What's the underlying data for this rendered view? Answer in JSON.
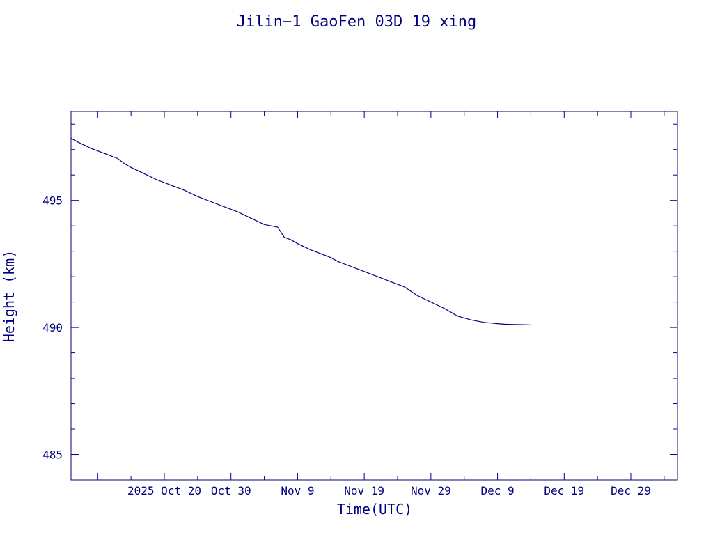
{
  "chart_data": {
    "type": "line",
    "title": "Jilin−1 GaoFen 03D 19 xing",
    "xlabel": "Time(UTC)",
    "ylabel": "Height (km)",
    "color": "#00007f",
    "grid": false,
    "xlim": [
      "2025-10-06",
      "2026-01-05"
    ],
    "ylim": [
      484,
      498.5
    ],
    "x_ticks": [
      {
        "date": "2025-10-20",
        "label": "2025 Oct 20"
      },
      {
        "date": "2025-10-30",
        "label": "Oct 30"
      },
      {
        "date": "2025-11-09",
        "label": "Nov  9"
      },
      {
        "date": "2025-11-19",
        "label": "Nov 19"
      },
      {
        "date": "2025-11-29",
        "label": "Nov 29"
      },
      {
        "date": "2025-12-09",
        "label": "Dec  9"
      },
      {
        "date": "2025-12-19",
        "label": "Dec 19"
      },
      {
        "date": "2025-12-29",
        "label": "Dec 29"
      }
    ],
    "y_ticks": [
      {
        "value": 485,
        "label": "485"
      },
      {
        "value": 490,
        "label": "490"
      },
      {
        "value": 495,
        "label": "495"
      }
    ],
    "series": [
      {
        "x": [
          "2025-10-06",
          "2025-10-07",
          "2025-10-09",
          "2025-10-11",
          "2025-10-13",
          "2025-10-14",
          "2025-10-15",
          "2025-10-17",
          "2025-10-19",
          "2025-10-21",
          "2025-10-23",
          "2025-10-25",
          "2025-10-27",
          "2025-10-29",
          "2025-10-31",
          "2025-11-02",
          "2025-11-04",
          "2025-11-06",
          "2025-11-07",
          "2025-11-08",
          "2025-11-09",
          "2025-11-11",
          "2025-11-13",
          "2025-11-14",
          "2025-11-15",
          "2025-11-17",
          "2025-11-19",
          "2025-11-21",
          "2025-11-23",
          "2025-11-25",
          "2025-11-27",
          "2025-11-29",
          "2025-12-01",
          "2025-12-03",
          "2025-12-05",
          "2025-12-07",
          "2025-12-09",
          "2025-12-10",
          "2025-12-11",
          "2025-12-13",
          "2025-12-14"
        ],
        "y": [
          497.45,
          497.3,
          497.05,
          496.85,
          496.65,
          496.45,
          496.3,
          496.05,
          495.8,
          495.6,
          495.4,
          495.15,
          494.95,
          494.75,
          494.55,
          494.3,
          494.05,
          493.95,
          493.55,
          493.45,
          493.3,
          493.05,
          492.85,
          492.75,
          492.6,
          492.4,
          492.2,
          492.0,
          491.8,
          491.6,
          491.25,
          491.0,
          490.75,
          490.45,
          490.3,
          490.2,
          490.15,
          490.13,
          490.12,
          490.11,
          490.1
        ]
      }
    ]
  }
}
